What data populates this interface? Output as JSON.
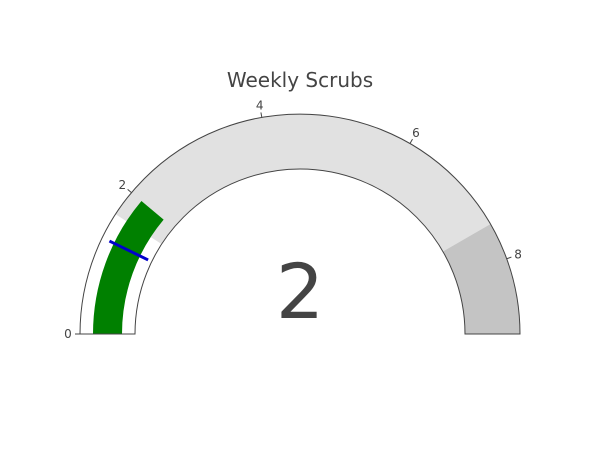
{
  "chart_data": {
    "type": "gauge",
    "title": "Weekly Scrubs",
    "value": 2,
    "value_display": "2",
    "range": [
      0,
      9
    ],
    "bar_color": "#008000",
    "threshold": {
      "value": 1.3,
      "color": "#0000cc"
    },
    "steps": [
      {
        "range": [
          0,
          1.65
        ],
        "color": "#ffffff"
      },
      {
        "range": [
          1.65,
          7.5
        ],
        "color": "#e1e1e1"
      },
      {
        "range": [
          7.5,
          9
        ],
        "color": "#c4c4c4"
      }
    ],
    "ticks": [
      {
        "value": 0,
        "label": "0"
      },
      {
        "value": 2,
        "label": "2"
      },
      {
        "value": 4,
        "label": "4"
      },
      {
        "value": 6,
        "label": "6"
      },
      {
        "value": 8,
        "label": "8"
      }
    ]
  }
}
